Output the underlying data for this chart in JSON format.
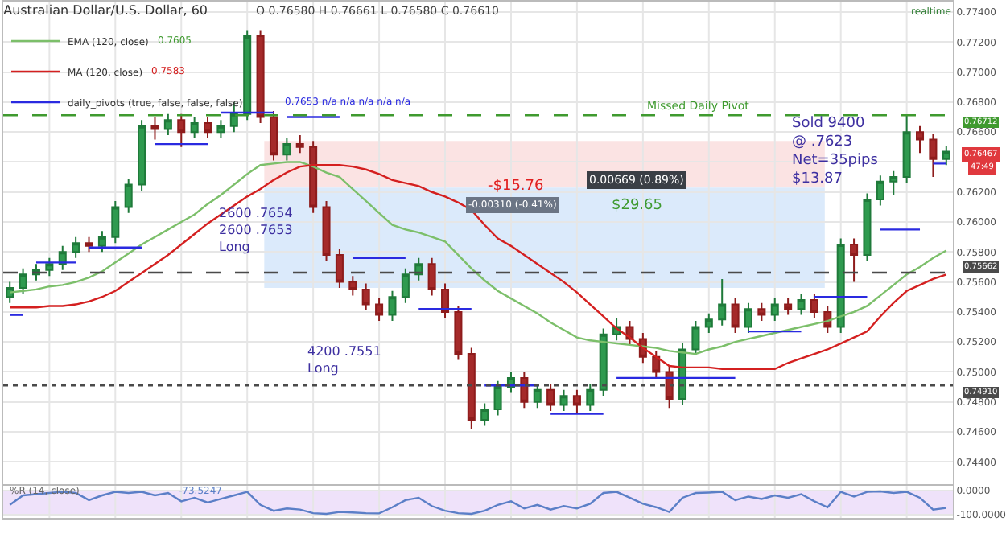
{
  "chart_data": [
    {
      "type": "candlestick",
      "title": "Australian Dollar/U.S. Dollar, 60",
      "categories": [
        null,
        null,
        null,
        null,
        null,
        null,
        null,
        null,
        null,
        null,
        null,
        null,
        null,
        null,
        null,
        null,
        null,
        null,
        null,
        null,
        null,
        null,
        null,
        null,
        null,
        null,
        null,
        null,
        null,
        null,
        null,
        null,
        null,
        null,
        null,
        null,
        null,
        null,
        null,
        null,
        null,
        null,
        null,
        null,
        null,
        null,
        null,
        null,
        null,
        null,
        null,
        null,
        null,
        null,
        null,
        null,
        null,
        null,
        null,
        null,
        null,
        null,
        null,
        null,
        null,
        null,
        null,
        null,
        null,
        null,
        null,
        null
      ],
      "ohlc": [
        [
          0.755,
          0.756,
          0.7546,
          0.7556
        ],
        [
          0.7556,
          0.7569,
          0.7552,
          0.7565
        ],
        [
          0.7565,
          0.7572,
          0.7561,
          0.7568
        ],
        [
          0.7568,
          0.7576,
          0.7564,
          0.7572
        ],
        [
          0.7572,
          0.7584,
          0.7568,
          0.758
        ],
        [
          0.758,
          0.759,
          0.7576,
          0.7586
        ],
        [
          0.7586,
          0.759,
          0.758,
          0.7584
        ],
        [
          0.7584,
          0.7594,
          0.758,
          0.759
        ],
        [
          0.759,
          0.7614,
          0.7586,
          0.761
        ],
        [
          0.761,
          0.7629,
          0.7606,
          0.7625
        ],
        [
          0.7625,
          0.7668,
          0.7621,
          0.7664
        ],
        [
          0.7664,
          0.767,
          0.7655,
          0.7662
        ],
        [
          0.7662,
          0.7672,
          0.7658,
          0.7668
        ],
        [
          0.7668,
          0.7672,
          0.765,
          0.766
        ],
        [
          0.766,
          0.767,
          0.7656,
          0.7666
        ],
        [
          0.7666,
          0.767,
          0.7656,
          0.766
        ],
        [
          0.766,
          0.7668,
          0.7656,
          0.7664
        ],
        [
          0.7664,
          0.768,
          0.766,
          0.7672
        ],
        [
          0.7672,
          0.7728,
          0.7668,
          0.7724
        ],
        [
          0.7724,
          0.7728,
          0.7666,
          0.767
        ],
        [
          0.767,
          0.7674,
          0.7641,
          0.7645
        ],
        [
          0.7645,
          0.7656,
          0.7641,
          0.7652
        ],
        [
          0.7652,
          0.7658,
          0.7646,
          0.765
        ],
        [
          0.765,
          0.7654,
          0.7606,
          0.761
        ],
        [
          0.761,
          0.7614,
          0.7574,
          0.7578
        ],
        [
          0.7578,
          0.7582,
          0.7556,
          0.756
        ],
        [
          0.756,
          0.7564,
          0.7551,
          0.7555
        ],
        [
          0.7555,
          0.7559,
          0.7541,
          0.7545
        ],
        [
          0.7545,
          0.7549,
          0.7534,
          0.7538
        ],
        [
          0.7538,
          0.7554,
          0.7534,
          0.755
        ],
        [
          0.755,
          0.7569,
          0.7546,
          0.7565
        ],
        [
          0.7565,
          0.7576,
          0.7561,
          0.7572
        ],
        [
          0.7572,
          0.7576,
          0.7551,
          0.7555
        ],
        [
          0.7555,
          0.7559,
          0.7536,
          0.754
        ],
        [
          0.754,
          0.7544,
          0.7508,
          0.7512
        ],
        [
          0.7512,
          0.7516,
          0.7462,
          0.7468
        ],
        [
          0.7468,
          0.7479,
          0.7464,
          0.7475
        ],
        [
          0.7475,
          0.7494,
          0.7471,
          0.749
        ],
        [
          0.749,
          0.75,
          0.7486,
          0.7496
        ],
        [
          0.7496,
          0.75,
          0.7476,
          0.748
        ],
        [
          0.748,
          0.7492,
          0.7476,
          0.7488
        ],
        [
          0.7488,
          0.7492,
          0.7474,
          0.7478
        ],
        [
          0.7478,
          0.7488,
          0.7474,
          0.7484
        ],
        [
          0.7484,
          0.7488,
          0.7472,
          0.7478
        ],
        [
          0.7478,
          0.7492,
          0.7474,
          0.7488
        ],
        [
          0.7488,
          0.7529,
          0.7484,
          0.7525
        ],
        [
          0.7525,
          0.7536,
          0.7521,
          0.753
        ],
        [
          0.753,
          0.7534,
          0.7518,
          0.7522
        ],
        [
          0.7522,
          0.7526,
          0.7506,
          0.751
        ],
        [
          0.751,
          0.7514,
          0.7496,
          0.75
        ],
        [
          0.75,
          0.7504,
          0.7476,
          0.7482
        ],
        [
          0.7482,
          0.7519,
          0.7478,
          0.7515
        ],
        [
          0.7515,
          0.7534,
          0.7511,
          0.753
        ],
        [
          0.753,
          0.7539,
          0.7526,
          0.7535
        ],
        [
          0.7535,
          0.7562,
          0.7531,
          0.7545
        ],
        [
          0.7545,
          0.7549,
          0.7526,
          0.753
        ],
        [
          0.753,
          0.7546,
          0.7526,
          0.7542
        ],
        [
          0.7542,
          0.7546,
          0.7534,
          0.7538
        ],
        [
          0.7538,
          0.7549,
          0.7534,
          0.7545
        ],
        [
          0.7545,
          0.7549,
          0.7538,
          0.7542
        ],
        [
          0.7542,
          0.7552,
          0.7538,
          0.7548
        ],
        [
          0.7548,
          0.7552,
          0.7536,
          0.754
        ],
        [
          0.754,
          0.7544,
          0.7526,
          0.753
        ],
        [
          0.753,
          0.7589,
          0.7526,
          0.7585
        ],
        [
          0.7585,
          0.7589,
          0.756,
          0.7578
        ],
        [
          0.7578,
          0.7619,
          0.7574,
          0.7615
        ],
        [
          0.7615,
          0.7631,
          0.7611,
          0.7627
        ],
        [
          0.7627,
          0.7634,
          0.7618,
          0.763
        ],
        [
          0.763,
          0.7671,
          0.7626,
          0.766
        ],
        [
          0.766,
          0.7664,
          0.7646,
          0.7655
        ],
        [
          0.7655,
          0.7659,
          0.763,
          0.7642
        ],
        [
          0.7642,
          0.7651,
          0.7638,
          0.7647
        ]
      ],
      "series": [
        {
          "type": "line",
          "name": "EMA (120, close)",
          "color": "#7cbf6a",
          "values": [
            0.7553,
            0.7554,
            0.7555,
            0.7557,
            0.7558,
            0.756,
            0.7563,
            0.7567,
            0.7573,
            0.7579,
            0.7585,
            0.759,
            0.7595,
            0.76,
            0.7605,
            0.7612,
            0.7618,
            0.7625,
            0.7632,
            0.7638,
            0.7639,
            0.764,
            0.764,
            0.7637,
            0.7633,
            0.763,
            0.7622,
            0.7614,
            0.7606,
            0.7598,
            0.7595,
            0.7593,
            0.759,
            0.7587,
            0.7578,
            0.7569,
            0.7561,
            0.7554,
            0.7549,
            0.7544,
            0.7539,
            0.7533,
            0.7528,
            0.7523,
            0.7521,
            0.752,
            0.7519,
            0.7518,
            0.7517,
            0.7516,
            0.7514,
            0.7513,
            0.7512,
            0.7515,
            0.7517,
            0.752,
            0.7522,
            0.7524,
            0.7526,
            0.7528,
            0.753,
            0.7532,
            0.7534,
            0.7537,
            0.754,
            0.7544,
            0.7551,
            0.7558,
            0.7565,
            0.757,
            0.7576,
            0.7581
          ]
        },
        {
          "type": "line",
          "name": "MA (120, close)",
          "color": "#d42020",
          "values": [
            0.7543,
            0.7543,
            0.7543,
            0.7544,
            0.7544,
            0.7545,
            0.7547,
            0.755,
            0.7554,
            0.756,
            0.7566,
            0.7572,
            0.7578,
            0.7585,
            0.7592,
            0.7599,
            0.7605,
            0.7611,
            0.7617,
            0.7622,
            0.7628,
            0.7633,
            0.7637,
            0.7638,
            0.7638,
            0.7638,
            0.7637,
            0.7635,
            0.7632,
            0.7628,
            0.7626,
            0.7624,
            0.762,
            0.7617,
            0.7613,
            0.7608,
            0.7598,
            0.7589,
            0.7584,
            0.7578,
            0.7572,
            0.7566,
            0.756,
            0.7553,
            0.7545,
            0.7537,
            0.7529,
            0.7523,
            0.7516,
            0.751,
            0.7504,
            0.7503,
            0.7503,
            0.7503,
            0.7502,
            0.7502,
            0.7502,
            0.7502,
            0.7502,
            0.7506,
            0.7509,
            0.7512,
            0.7515,
            0.7519,
            0.7523,
            0.7527,
            0.7537,
            0.7546,
            0.7554,
            0.7558,
            0.7562,
            0.7565
          ]
        },
        {
          "type": "line",
          "name": "daily_pivots (true, false, false, false)",
          "color": "#2a2ae0",
          "values": [
            0.7538,
            0.7538,
            null,
            null,
            null,
            null,
            0.7583,
            0.7583,
            0.7583,
            0.7583,
            0.7583,
            null,
            null,
            null,
            null,
            null,
            0.7673,
            0.7673,
            0.7673,
            0.7673,
            0.7673,
            null,
            null,
            null,
            null,
            null,
            0.7576,
            0.7576,
            0.7576,
            0.7576,
            0.7576,
            null,
            null,
            null,
            null,
            null,
            0.7491,
            0.7491,
            0.7491,
            0.7491,
            0.7491,
            null,
            null,
            null,
            null,
            null,
            0.7496,
            0.7496,
            0.7496,
            0.7496,
            0.7496,
            0.7496,
            0.7496,
            0.7496,
            0.7496,
            0.7496,
            null,
            null,
            null,
            null,
            null,
            0.755,
            0.755,
            0.755,
            0.755,
            0.755,
            null,
            null,
            null,
            null,
            0.7639,
            0.7639
          ]
        },
        {
          "type": "line",
          "color": "#2a2ae0",
          "values": [
            null,
            null,
            0.7573,
            0.7573,
            0.7573,
            0.7573,
            null,
            null,
            null,
            null,
            null,
            0.7652,
            0.7652,
            0.7652,
            0.7652,
            0.7652,
            null,
            null,
            null,
            null,
            null,
            0.767,
            0.767,
            0.767,
            0.767,
            0.767,
            null,
            null,
            null,
            null,
            null,
            0.7542,
            0.7542,
            0.7542,
            0.7542,
            0.7542,
            null,
            null,
            null,
            null,
            null,
            0.7472,
            0.7472,
            0.7472,
            0.7472,
            0.7472,
            null,
            null,
            null,
            null,
            null,
            null,
            null,
            null,
            null,
            null,
            0.7527,
            0.7527,
            0.7527,
            0.7527,
            0.7527,
            null,
            null,
            null,
            null,
            null,
            0.7595,
            0.7595,
            0.7595,
            0.7595,
            null,
            null
          ]
        }
      ],
      "ylim": [
        0.7425,
        0.7747
      ],
      "yticks": [
        {
          "value": 0.744,
          "label": "0.74400"
        },
        {
          "value": 0.746,
          "label": "0.74600"
        },
        {
          "value": 0.748,
          "label": "0.74800"
        },
        {
          "value": 0.75,
          "label": "0.75000"
        },
        {
          "value": 0.752,
          "label": "0.75200"
        },
        {
          "value": 0.754,
          "label": "0.75400"
        },
        {
          "value": 0.756,
          "label": "0.75600"
        },
        {
          "value": 0.758,
          "label": "0.75800"
        },
        {
          "value": 0.76,
          "label": "0.76000"
        },
        {
          "value": 0.762,
          "label": "0.76200"
        },
        {
          "value": 0.764,
          "label": null
        },
        {
          "value": 0.766,
          "label": "0.76600"
        },
        {
          "value": 0.768,
          "label": "0.76800"
        },
        {
          "value": 0.77,
          "label": "0.77000"
        },
        {
          "value": 0.772,
          "label": "0.77200"
        },
        {
          "value": 0.774,
          "label": "0.77400"
        }
      ],
      "grid": true,
      "legend": "top left",
      "tick_labels": "y",
      "ref_lines": [
        {
          "axis": "y",
          "value": 0.76712,
          "label": "0.76712",
          "color": "#3f9a2f",
          "line_style": "dashed"
        },
        {
          "axis": "y",
          "value": 0.75662,
          "label": "0.75662",
          "color": "#4a4a4a",
          "line_style": "dashed"
        },
        {
          "axis": "y",
          "value": 0.7491,
          "label": "0.74910",
          "color": "#4a4a4a",
          "line_style": "dotted"
        }
      ],
      "bands": [
        {
          "axis": "y",
          "from": 0.7623,
          "to": 0.7654,
          "color": "#fbe3e3"
        },
        {
          "axis": "y",
          "from": 0.7556,
          "to": 0.7623,
          "color": "#dbeafb"
        }
      ],
      "annotations": [
        "O 0.76580 H 0.76661 L 0.76580 C 0.76610",
        "0.7605",
        "0.7583",
        "0.7653 n/a n/a n/a n/a n/a",
        "2600 .7654\n2600 .7653\nLong",
        "4200 .7551\nLong",
        "-$15.76",
        "$29.65",
        "-0.00310 (-0.41%)",
        "0.00669 (0.89%)",
        "Sold 9400\n@ .7623",
        "Net=35pips\n$13.87",
        "realtime",
        "0.76467",
        "47:49",
        {
          "text": "Missed Daily Pivot",
          "y": 0.76712
        }
      ]
    },
    {
      "type": "line",
      "title": "%R (14, close)",
      "categories": [
        null,
        null,
        null,
        null,
        null,
        null,
        null,
        null,
        null,
        null,
        null,
        null,
        null,
        null,
        null,
        null,
        null,
        null,
        null,
        null,
        null,
        null,
        null,
        null,
        null,
        null,
        null,
        null,
        null,
        null,
        null,
        null,
        null,
        null,
        null,
        null,
        null,
        null,
        null,
        null,
        null,
        null,
        null,
        null,
        null,
        null,
        null,
        null,
        null,
        null,
        null,
        null,
        null,
        null,
        null,
        null,
        null,
        null,
        null,
        null,
        null,
        null,
        null,
        null,
        null,
        null,
        null,
        null,
        null,
        null,
        null,
        null
      ],
      "series": [
        {
          "color": "#5b7fc7",
          "values": [
            -60,
            -20,
            -15,
            -10,
            -5,
            -10,
            -40,
            -20,
            -5,
            -10,
            -5,
            -20,
            -10,
            -45,
            -30,
            -50,
            -35,
            -20,
            -5,
            -60,
            -85,
            -75,
            -80,
            -95,
            -98,
            -90,
            -92,
            -95,
            -96,
            -70,
            -40,
            -30,
            -65,
            -85,
            -95,
            -98,
            -85,
            -60,
            -45,
            -75,
            -60,
            -80,
            -65,
            -75,
            -55,
            -10,
            -5,
            -30,
            -55,
            -70,
            -90,
            -30,
            -10,
            -8,
            -5,
            -40,
            -25,
            -35,
            -20,
            -30,
            -15,
            -45,
            -70,
            -5,
            -25,
            -5,
            -3,
            -10,
            -5,
            -30,
            -80,
            -73
          ]
        }
      ],
      "ylim": [
        -115,
        20
      ],
      "yticks": [
        {
          "value": 0,
          "label": "0.0000"
        },
        {
          "value": -100,
          "label": "-100.0000"
        }
      ],
      "grid": true,
      "tick_labels": "y",
      "bands": [
        {
          "axis": "y",
          "from": -100,
          "to": 0,
          "color": "#efe2fa"
        }
      ],
      "annotations": [
        "-73.5247"
      ]
    }
  ]
}
